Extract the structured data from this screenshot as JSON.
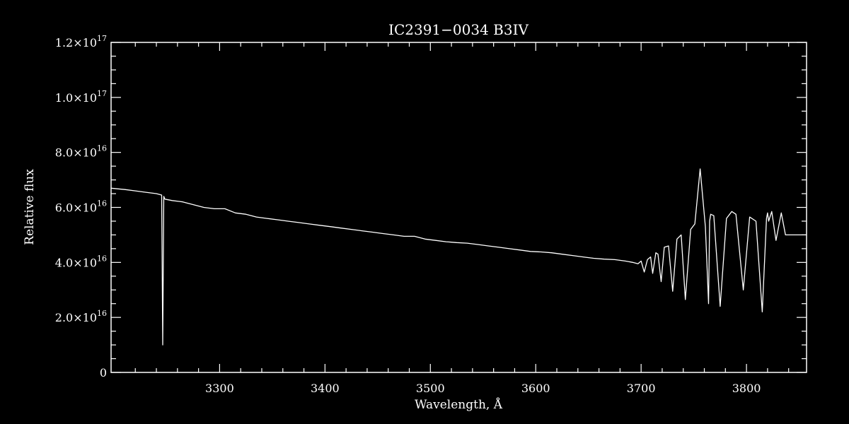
{
  "chart_data": {
    "type": "line",
    "title": "IC2391−0034   B3IV",
    "xlabel": "Wavelength, Å",
    "ylabel": "Relative flux",
    "xlim": [
      3197,
      3857
    ],
    "ylim": [
      0,
      1.2e+17
    ],
    "grid": false,
    "x_ticks": [
      3300,
      3400,
      3500,
      3600,
      3700,
      3800
    ],
    "x_tick_labels": [
      "3300",
      "3400",
      "3500",
      "3600",
      "3700",
      "3800"
    ],
    "y_ticks": [
      0,
      2e+16,
      4e+16,
      6e+16,
      8e+16,
      1e+17,
      1.2e+17
    ],
    "y_tick_labels": [
      {
        "mantissa": "0",
        "exponent": ""
      },
      {
        "mantissa": "2.0×10",
        "exponent": "16"
      },
      {
        "mantissa": "4.0×10",
        "exponent": "16"
      },
      {
        "mantissa": "6.0×10",
        "exponent": "16"
      },
      {
        "mantissa": "8.0×10",
        "exponent": "16"
      },
      {
        "mantissa": "1.0×10",
        "exponent": "17"
      },
      {
        "mantissa": "1.2×10",
        "exponent": "17"
      }
    ],
    "series": [
      {
        "color": "#ffffff",
        "x": [
          3197,
          3210,
          3220,
          3230,
          3240,
          3245,
          3246,
          3247,
          3248,
          3255,
          3265,
          3275,
          3285,
          3295,
          3305,
          3315,
          3325,
          3335,
          3345,
          3355,
          3365,
          3375,
          3385,
          3395,
          3405,
          3415,
          3425,
          3435,
          3445,
          3455,
          3465,
          3475,
          3485,
          3495,
          3505,
          3515,
          3525,
          3535,
          3545,
          3555,
          3565,
          3575,
          3585,
          3595,
          3605,
          3615,
          3625,
          3635,
          3645,
          3655,
          3665,
          3675,
          3685,
          3692,
          3697,
          3700,
          3703,
          3706,
          3709,
          3711,
          3714,
          3716,
          3719,
          3722,
          3726,
          3730,
          3734,
          3738,
          3742,
          3747,
          3751,
          3756,
          3761,
          3764,
          3765,
          3766,
          3769,
          3775,
          3781,
          3786,
          3790,
          3797,
          3803,
          3809,
          3815,
          3819,
          3820,
          3821,
          3824,
          3828,
          3833,
          3837,
          3841,
          3846,
          3850,
          3854,
          3856,
          3857
        ],
        "y": [
          6.7e+16,
          6.65e+16,
          6.6e+16,
          6.55e+16,
          6.5e+16,
          6.45e+16,
          1e+16,
          6.4e+16,
          6.3e+16,
          6.25e+16,
          6.2e+16,
          6.1e+16,
          6e+16,
          5.95e+16,
          5.95e+16,
          5.8e+16,
          5.75e+16,
          5.65e+16,
          5.6e+16,
          5.55e+16,
          5.5e+16,
          5.45e+16,
          5.4e+16,
          5.35e+16,
          5.3e+16,
          5.25e+16,
          5.2e+16,
          5.15e+16,
          5.1e+16,
          5.05e+16,
          5e+16,
          4.95e+16,
          4.95e+16,
          4.85e+16,
          4.8e+16,
          4.75e+16,
          4.72e+16,
          4.7e+16,
          4.65e+16,
          4.6e+16,
          4.55e+16,
          4.5e+16,
          4.45e+16,
          4.4e+16,
          4.38e+16,
          4.35e+16,
          4.3e+16,
          4.25e+16,
          4.2e+16,
          4.15e+16,
          4.12e+16,
          4.1e+16,
          4.05e+16,
          4e+16,
          3.95e+16,
          4.05e+16,
          3.65e+16,
          4.1e+16,
          4.2e+16,
          3.6e+16,
          4.35e+16,
          4.3e+16,
          3.3e+16,
          4.55e+16,
          4.6e+16,
          2.95e+16,
          4.85e+16,
          5e+16,
          2.65e+16,
          5.2e+16,
          5.4e+16,
          7.4e+16,
          5.3e+16,
          2.5e+16,
          5.5e+16,
          5.75e+16,
          5.7e+16,
          2.4e+16,
          5.6e+16,
          5.85e+16,
          5.75e+16,
          3e+16,
          5.65e+16,
          5.5e+16,
          2.2e+16,
          5.6e+16,
          5.8e+16,
          5.5e+16,
          5.85e+16,
          4.8e+16,
          5.8e+16,
          5e+16,
          5e+16,
          5e+16,
          5e+16,
          5e+16,
          5e+16,
          5e+16
        ]
      }
    ]
  }
}
